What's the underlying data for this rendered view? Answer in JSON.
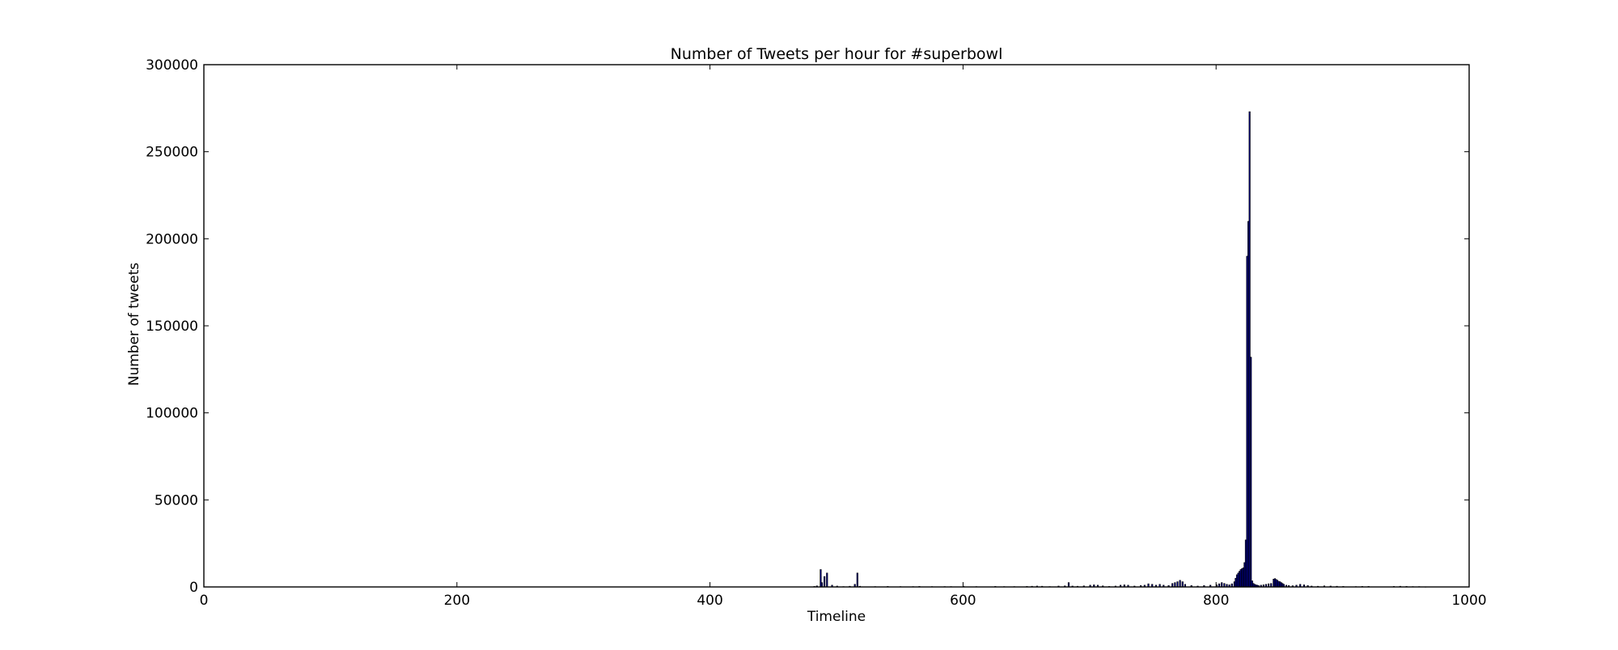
{
  "chart_data": {
    "type": "bar",
    "title": "Number of Tweets per hour for #superbowl",
    "xlabel": "Timeline",
    "ylabel": "Number of tweets",
    "xlim": [
      0,
      1000
    ],
    "ylim": [
      0,
      300000
    ],
    "xticks": [
      0,
      200,
      400,
      600,
      800,
      1000
    ],
    "yticks": [
      0,
      50000,
      100000,
      150000,
      200000,
      250000,
      300000
    ],
    "bar_color": "#000080",
    "grid": false,
    "legend": "none",
    "series": [
      {
        "x": [
          482,
          484,
          487,
          488,
          490,
          492,
          496,
          500,
          505,
          510,
          514,
          516,
          518,
          530,
          540,
          550,
          560,
          565,
          575,
          585,
          590,
          600,
          610,
          625,
          632,
          640,
          650,
          654,
          658,
          662,
          668,
          675,
          680,
          683,
          686,
          690,
          695,
          700,
          703,
          706,
          710,
          715,
          720,
          724,
          727,
          730,
          735,
          740,
          743,
          746,
          749,
          752,
          755,
          758,
          762,
          765,
          767,
          769,
          771,
          773,
          775,
          780,
          785,
          790,
          795,
          800,
          802,
          804,
          806,
          808,
          810,
          812,
          814,
          815,
          816,
          817,
          818,
          819,
          820,
          821,
          822,
          823,
          824,
          825,
          826,
          827,
          828,
          829,
          830,
          831,
          832,
          833,
          835,
          837,
          839,
          841,
          843,
          845,
          846,
          847,
          848,
          849,
          850,
          851,
          852,
          853,
          855,
          857,
          860,
          863,
          866,
          869,
          872,
          875,
          880,
          885,
          890,
          895,
          900,
          910,
          915,
          920,
          940,
          945,
          950,
          955,
          960,
          965
        ],
        "y": [
          300,
          600,
          10000,
          2500,
          6000,
          8000,
          1000,
          500,
          200,
          400,
          1500,
          8000,
          400,
          200,
          300,
          200,
          200,
          300,
          200,
          200,
          200,
          300,
          200,
          300,
          200,
          200,
          300,
          400,
          500,
          400,
          200,
          500,
          600,
          2500,
          500,
          400,
          600,
          1000,
          1200,
          1000,
          600,
          300,
          500,
          1000,
          1200,
          1000,
          500,
          800,
          1000,
          1800,
          1500,
          1000,
          1500,
          1000,
          800,
          2000,
          2500,
          3000,
          3800,
          3000,
          1500,
          800,
          500,
          800,
          1000,
          1200,
          1800,
          2500,
          2000,
          1500,
          1200,
          1800,
          3000,
          5000,
          7000,
          8000,
          9000,
          10000,
          10500,
          11000,
          14000,
          27000,
          190000,
          210000,
          273000,
          132000,
          3500,
          2000,
          1500,
          1200,
          1000,
          800,
          1000,
          1200,
          1500,
          1800,
          2000,
          4500,
          4800,
          4300,
          3800,
          3200,
          3000,
          2500,
          2000,
          1500,
          1000,
          800,
          700,
          1000,
          1500,
          1200,
          800,
          500,
          400,
          600,
          500,
          400,
          300,
          200,
          300,
          300,
          300,
          400,
          300,
          200,
          200,
          100
        ]
      }
    ]
  }
}
